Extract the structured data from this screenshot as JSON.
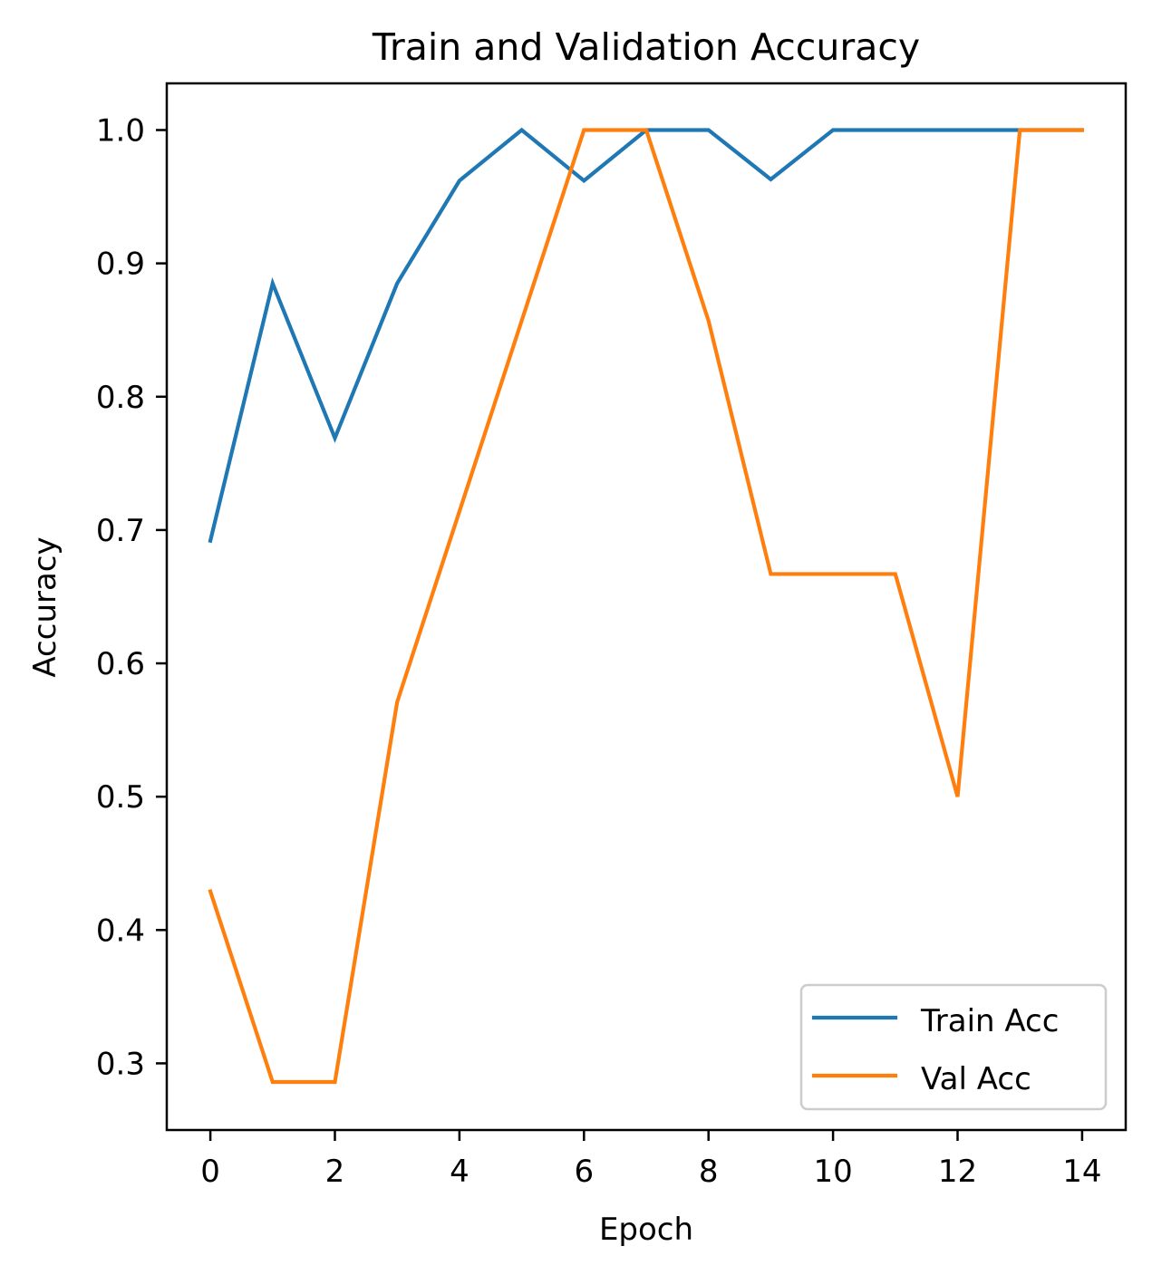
{
  "chart_data": {
    "type": "line",
    "title": "Train and Validation Accuracy",
    "xlabel": "Epoch",
    "ylabel": "Accuracy",
    "x": [
      0,
      1,
      2,
      3,
      4,
      5,
      6,
      7,
      8,
      9,
      10,
      11,
      12,
      13,
      14
    ],
    "xlim": [
      -0.7,
      14.7
    ],
    "ylim": [
      0.25,
      1.035
    ],
    "xticks": [
      0,
      2,
      4,
      6,
      8,
      10,
      12,
      14
    ],
    "xtick_labels": [
      "0",
      "2",
      "4",
      "6",
      "8",
      "10",
      "12",
      "14"
    ],
    "yticks": [
      0.3,
      0.4,
      0.5,
      0.6,
      0.7,
      0.8,
      0.9,
      1.0
    ],
    "ytick_labels": [
      "0.3",
      "0.4",
      "0.5",
      "0.6",
      "0.7",
      "0.8",
      "0.9",
      "1.0"
    ],
    "grid": false,
    "legend_position": "lower-right",
    "series": [
      {
        "name": "Train Acc",
        "color": "#1f77b4",
        "values": [
          0.692,
          0.885,
          0.769,
          0.885,
          0.962,
          1.0,
          0.962,
          1.0,
          1.0,
          0.963,
          1.0,
          1.0,
          1.0,
          1.0,
          1.0
        ]
      },
      {
        "name": "Val Acc",
        "color": "#ff7f0e",
        "values": [
          0.429,
          0.286,
          0.286,
          0.571,
          0.714,
          0.857,
          1.0,
          1.0,
          0.857,
          0.667,
          0.667,
          0.667,
          0.5,
          1.0,
          1.0
        ]
      }
    ]
  }
}
